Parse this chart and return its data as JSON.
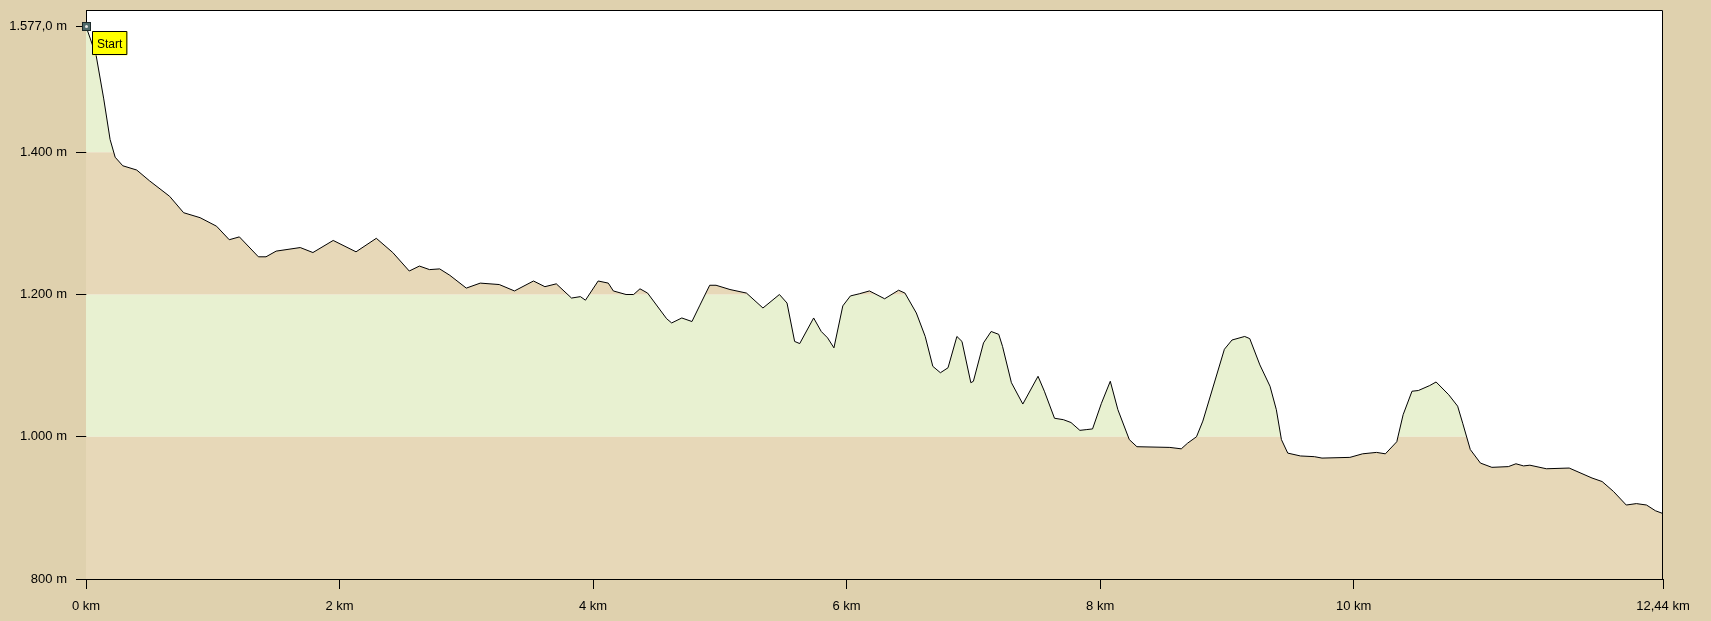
{
  "chart_data": {
    "type": "area",
    "x": [
      0,
      0.08,
      0.14,
      0.19,
      0.23,
      0.29,
      0.4,
      0.5,
      0.66,
      0.77,
      0.9,
      1.03,
      1.13,
      1.21,
      1.36,
      1.42,
      1.5,
      1.69,
      1.79,
      1.95,
      2.13,
      2.29,
      2.42,
      2.55,
      2.63,
      2.71,
      2.79,
      2.87,
      3,
      3.11,
      3.26,
      3.38,
      3.53,
      3.62,
      3.71,
      3.83,
      3.9,
      3.94,
      4.04,
      4.12,
      4.16,
      4.26,
      4.32,
      4.37,
      4.43,
      4.58,
      4.62,
      4.7,
      4.78,
      4.84,
      4.92,
      4.97,
      5.08,
      5.21,
      5.34,
      5.47,
      5.53,
      5.59,
      5.63,
      5.74,
      5.8,
      5.85,
      5.9,
      5.97,
      6.03,
      6.1,
      6.18,
      6.3,
      6.41,
      6.46,
      6.55,
      6.62,
      6.68,
      6.74,
      6.8,
      6.87,
      6.91,
      6.98,
      7,
      7.08,
      7.14,
      7.2,
      7.23,
      7.3,
      7.39,
      7.51,
      7.56,
      7.64,
      7.71,
      7.77,
      7.84,
      7.89,
      7.94,
      8.01,
      8.08,
      8.14,
      8.23,
      8.29,
      8.55,
      8.64,
      8.69,
      8.76,
      8.81,
      8.98,
      9.04,
      9.14,
      9.18,
      9.26,
      9.34,
      9.39,
      9.43,
      9.48,
      9.58,
      9.69,
      9.75,
      9.97,
      10.07,
      10.18,
      10.25,
      10.34,
      10.39,
      10.46,
      10.51,
      10.6,
      10.65,
      10.75,
      10.82,
      10.86,
      10.92,
      11,
      11.09,
      11.22,
      11.28,
      11.34,
      11.39,
      11.52,
      11.7,
      11.88,
      11.96,
      12.05,
      12.15,
      12.23,
      12.31,
      12.38,
      12.44
    ],
    "series": [
      {
        "color": "#e7d8b8",
        "values": [
          1577,
          1536,
          1475,
          1418,
          1393,
          1381,
          1375,
          1360,
          1338,
          1315,
          1308,
          1296,
          1277,
          1281,
          1253,
          1253,
          1261,
          1266,
          1259,
          1276,
          1260,
          1279,
          1259,
          1233,
          1240,
          1235,
          1236,
          1227,
          1209,
          1216,
          1214,
          1205,
          1219,
          1211,
          1215,
          1195,
          1197,
          1192,
          1219,
          1216,
          1205,
          1200,
          1200,
          1208,
          1202,
          1166,
          1160,
          1167,
          1162,
          1184,
          1213,
          1213,
          1207,
          1202,
          1181,
          1200,
          1188,
          1134,
          1131,
          1167,
          1148,
          1139,
          1125,
          1184,
          1198,
          1201,
          1205,
          1194,
          1206,
          1202,
          1174,
          1141,
          1099,
          1090,
          1097,
          1141,
          1134,
          1076,
          1078,
          1132,
          1148,
          1144,
          1127,
          1076,
          1046,
          1085,
          1064,
          1026,
          1024,
          1020,
          1009,
          1010,
          1011,
          1047,
          1078,
          1038,
          996,
          986,
          985,
          983,
          991,
          1000,
          1022,
          1123,
          1136,
          1141,
          1138,
          1101,
          1071,
          1038,
          996,
          977,
          973,
          972,
          970,
          971,
          976,
          978,
          976,
          993,
          1031,
          1064,
          1065,
          1072,
          1077,
          1059,
          1043,
          1019,
          982,
          963,
          957,
          958,
          962,
          959,
          960,
          955,
          956,
          942,
          937,
          923,
          904,
          906,
          904,
          896,
          892
        ]
      }
    ],
    "xlim": [
      0,
      12.44
    ],
    "xticks": [
      {
        "value": 0,
        "label": "0 km"
      },
      {
        "value": 2,
        "label": "2 km"
      },
      {
        "value": 4,
        "label": "4 km"
      },
      {
        "value": 6,
        "label": "6 km"
      },
      {
        "value": 8,
        "label": "8 km"
      },
      {
        "value": 10,
        "label": "10 km"
      },
      {
        "value": 12.44,
        "label": "12,44 km"
      }
    ],
    "ylim": [
      800,
      1600
    ],
    "yticks": [
      {
        "value": 800,
        "label": "800 m"
      },
      {
        "value": 1000,
        "label": "1.000 m"
      },
      {
        "value": 1200,
        "label": "1.200 m"
      },
      {
        "value": 1400,
        "label": "1.400 m"
      },
      {
        "value": 1577,
        "label": "1.577,0 m"
      }
    ],
    "bands": [
      {
        "axis": "y",
        "from": 1000,
        "to": 1200,
        "color": "#e8f1d1"
      },
      {
        "axis": "y",
        "from": 1400,
        "to": 1600,
        "color": "#e8f1d1"
      }
    ],
    "annotations": [
      {
        "text": "Start",
        "x": 0,
        "y": 1577
      }
    ]
  }
}
